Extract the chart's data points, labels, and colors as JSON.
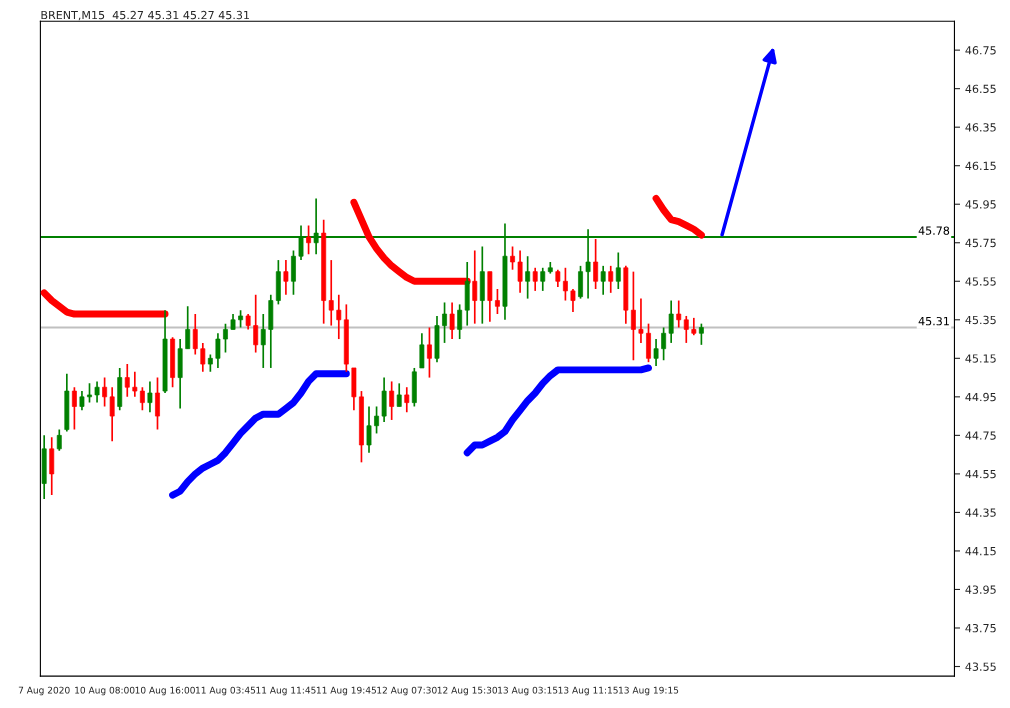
{
  "chart_data": {
    "type": "candlestick",
    "title": "BRENT,M15  45.27 45.31 45.27 45.31",
    "categories": [
      "7 Aug 2020",
      null,
      null,
      null,
      null,
      null,
      null,
      null,
      "10 Aug 08:00",
      null,
      null,
      null,
      null,
      null,
      null,
      null,
      "10 Aug 16:00",
      null,
      null,
      null,
      null,
      null,
      null,
      null,
      "11 Aug 03:45",
      null,
      null,
      null,
      null,
      null,
      null,
      null,
      "11 Aug 11:45",
      null,
      null,
      null,
      null,
      null,
      null,
      null,
      "11 Aug 19:45",
      null,
      null,
      null,
      null,
      null,
      null,
      null,
      "12 Aug 07:30",
      null,
      null,
      null,
      null,
      null,
      null,
      null,
      "12 Aug 15:30",
      null,
      null,
      null,
      null,
      null,
      null,
      null,
      "13 Aug 03:15",
      null,
      null,
      null,
      null,
      null,
      null,
      null,
      "13 Aug 11:15",
      null,
      null,
      null,
      null,
      null,
      null,
      null,
      "13 Aug 19:15",
      null,
      null,
      null,
      null,
      null,
      null,
      null,
      null,
      null,
      null,
      null,
      null,
      null,
      null,
      null,
      null,
      null,
      null,
      null,
      null,
      null,
      null,
      null,
      null,
      null,
      null,
      null,
      null,
      null,
      null,
      null,
      null,
      null,
      null,
      null,
      null,
      null,
      null,
      null,
      null
    ],
    "ohlc": [
      [
        44.5,
        44.75,
        44.42,
        44.68
      ],
      [
        44.68,
        44.74,
        44.44,
        44.55
      ],
      [
        44.68,
        44.78,
        44.67,
        44.75
      ],
      [
        44.78,
        45.07,
        44.77,
        44.98
      ],
      [
        44.98,
        45.0,
        44.78,
        44.9
      ],
      [
        44.9,
        44.98,
        44.88,
        44.95
      ],
      [
        44.95,
        45.02,
        44.92,
        44.96
      ],
      [
        44.96,
        45.03,
        44.92,
        45.0
      ],
      [
        45.0,
        45.05,
        44.9,
        44.95
      ],
      [
        44.95,
        45.0,
        44.72,
        44.85
      ],
      [
        44.9,
        45.1,
        44.88,
        45.05
      ],
      [
        45.05,
        45.12,
        44.95,
        45.0
      ],
      [
        45.0,
        45.08,
        44.95,
        44.98
      ],
      [
        44.98,
        45.0,
        44.88,
        44.92
      ],
      [
        44.92,
        45.03,
        44.87,
        44.97
      ],
      [
        44.97,
        45.05,
        44.78,
        44.85
      ],
      [
        44.98,
        45.4,
        44.97,
        45.25
      ],
      [
        45.25,
        45.26,
        45.0,
        45.05
      ],
      [
        45.05,
        45.25,
        44.89,
        45.2
      ],
      [
        45.2,
        45.42,
        45.2,
        45.3
      ],
      [
        45.3,
        45.38,
        45.17,
        45.2
      ],
      [
        45.2,
        45.23,
        45.08,
        45.12
      ],
      [
        45.12,
        45.17,
        45.08,
        45.15
      ],
      [
        45.15,
        45.28,
        45.1,
        45.25
      ],
      [
        45.25,
        45.33,
        45.18,
        45.3
      ],
      [
        45.3,
        45.38,
        45.3,
        45.35
      ],
      [
        45.35,
        45.4,
        45.31,
        45.37
      ],
      [
        45.37,
        45.38,
        45.3,
        45.32
      ],
      [
        45.32,
        45.48,
        45.18,
        45.22
      ],
      [
        45.22,
        45.38,
        45.1,
        45.3
      ],
      [
        45.3,
        45.48,
        45.1,
        45.45
      ],
      [
        45.45,
        45.66,
        45.43,
        45.6
      ],
      [
        45.6,
        45.66,
        45.48,
        45.55
      ],
      [
        45.55,
        45.71,
        45.48,
        45.68
      ],
      [
        45.68,
        45.84,
        45.66,
        45.78
      ],
      [
        45.78,
        45.84,
        45.69,
        45.75
      ],
      [
        45.75,
        45.98,
        45.69,
        45.8
      ],
      [
        45.8,
        45.87,
        45.33,
        45.45
      ],
      [
        45.45,
        45.66,
        45.32,
        45.4
      ],
      [
        45.4,
        45.48,
        45.25,
        45.35
      ],
      [
        45.35,
        45.43,
        45.08,
        45.12
      ],
      [
        45.1,
        45.1,
        44.88,
        44.95
      ],
      [
        44.95,
        44.98,
        44.61,
        44.7
      ],
      [
        44.7,
        44.9,
        44.66,
        44.8
      ],
      [
        44.8,
        44.9,
        44.76,
        44.85
      ],
      [
        44.85,
        45.05,
        44.82,
        44.98
      ],
      [
        44.98,
        45.03,
        44.83,
        44.9
      ],
      [
        44.9,
        45.02,
        44.9,
        44.96
      ],
      [
        44.96,
        45.0,
        44.87,
        44.92
      ],
      [
        44.92,
        45.1,
        44.9,
        45.08
      ],
      [
        45.1,
        45.28,
        45.1,
        45.22
      ],
      [
        45.22,
        45.31,
        45.05,
        45.15
      ],
      [
        45.15,
        45.37,
        45.13,
        45.32
      ],
      [
        45.32,
        45.44,
        45.23,
        45.38
      ],
      [
        45.38,
        45.44,
        45.25,
        45.3
      ],
      [
        45.3,
        45.43,
        45.25,
        45.4
      ],
      [
        45.4,
        45.65,
        45.32,
        45.55
      ],
      [
        45.55,
        45.71,
        45.33,
        45.45
      ],
      [
        45.45,
        45.73,
        45.33,
        45.6
      ],
      [
        45.6,
        45.6,
        45.34,
        45.45
      ],
      [
        45.45,
        45.51,
        45.38,
        45.42
      ],
      [
        45.42,
        45.85,
        45.35,
        45.68
      ],
      [
        45.68,
        45.73,
        45.61,
        45.65
      ],
      [
        45.65,
        45.71,
        45.49,
        45.55
      ],
      [
        45.55,
        45.68,
        45.46,
        45.6
      ],
      [
        45.6,
        45.62,
        45.5,
        45.55
      ],
      [
        45.55,
        45.62,
        45.5,
        45.6
      ],
      [
        45.6,
        45.65,
        45.59,
        45.62
      ],
      [
        45.6,
        45.61,
        45.52,
        45.55
      ],
      [
        45.55,
        45.62,
        45.45,
        45.5
      ],
      [
        45.5,
        45.51,
        45.39,
        45.45
      ],
      [
        45.47,
        45.63,
        45.46,
        45.6
      ],
      [
        45.6,
        45.82,
        45.46,
        45.65
      ],
      [
        45.65,
        45.77,
        45.51,
        45.55
      ],
      [
        45.55,
        45.63,
        45.48,
        45.6
      ],
      [
        45.6,
        45.63,
        45.49,
        45.55
      ],
      [
        45.55,
        45.7,
        45.51,
        45.62
      ],
      [
        45.62,
        45.63,
        45.33,
        45.4
      ],
      [
        45.4,
        45.6,
        45.14,
        45.3
      ],
      [
        45.3,
        45.46,
        45.23,
        45.28
      ],
      [
        45.28,
        45.33,
        45.13,
        45.15
      ],
      [
        45.15,
        45.25,
        45.11,
        45.2
      ],
      [
        45.2,
        45.31,
        45.14,
        45.28
      ],
      [
        45.28,
        45.45,
        45.23,
        45.38
      ],
      [
        45.38,
        45.45,
        45.31,
        45.35
      ],
      [
        45.35,
        45.37,
        45.23,
        45.3
      ],
      [
        45.3,
        45.36,
        45.27,
        45.28
      ],
      [
        45.28,
        45.33,
        45.22,
        45.31
      ],
      null,
      null,
      null,
      null,
      null,
      null,
      null,
      null,
      null,
      null,
      null,
      null,
      null,
      null,
      null,
      null,
      null,
      null,
      null,
      null,
      null,
      null,
      null,
      null,
      null,
      null,
      null,
      null,
      null,
      null,
      null,
      null,
      null
    ],
    "colors": [
      "#008000",
      "#ff0000",
      "#008000",
      "#008000",
      "#ff0000",
      "#008000",
      "#008000",
      "#008000",
      "#ff0000",
      "#ff0000",
      "#008000",
      "#ff0000",
      "#ff0000",
      "#ff0000",
      "#008000",
      "#ff0000",
      "#008000",
      "#ff0000",
      "#008000",
      "#008000",
      "#ff0000",
      "#ff0000",
      "#008000",
      "#008000",
      "#008000",
      "#008000",
      "#008000",
      "#ff0000",
      "#ff0000",
      "#008000",
      "#008000",
      "#008000",
      "#ff0000",
      "#008000",
      "#008000",
      "#ff0000",
      "#008000",
      "#ff0000",
      "#ff0000",
      "#ff0000",
      "#ff0000",
      "#ff0000",
      "#ff0000",
      "#008000",
      "#008000",
      "#008000",
      "#ff0000",
      "#008000",
      "#ff0000",
      "#008000",
      "#008000",
      "#ff0000",
      "#008000",
      "#008000",
      "#ff0000",
      "#008000",
      "#008000",
      "#ff0000",
      "#008000",
      "#ff0000",
      "#ff0000",
      "#008000",
      "#ff0000",
      "#ff0000",
      "#008000",
      "#ff0000",
      "#008000",
      "#008000",
      "#ff0000",
      "#ff0000",
      "#ff0000",
      "#008000",
      "#008000",
      "#ff0000",
      "#008000",
      "#ff0000",
      "#008000",
      "#ff0000",
      "#ff0000",
      "#ff0000",
      "#ff0000",
      "#008000",
      "#008000",
      "#008000",
      "#ff0000",
      "#ff0000",
      "#ff0000",
      "#008000",
      null,
      null,
      null,
      null,
      null,
      null,
      null,
      null,
      null,
      null,
      null,
      null,
      null,
      null,
      null,
      null,
      null,
      null,
      null,
      null,
      null,
      null,
      null,
      null,
      null,
      null,
      null,
      null,
      null,
      null,
      null,
      null,
      null
    ],
    "series": [
      {
        "type": "line",
        "color": "#ff0000",
        "values": [
          45.49,
          45.45,
          45.42,
          45.39,
          45.38,
          45.38,
          45.38,
          45.38,
          45.38,
          45.38,
          45.38,
          45.38,
          45.38,
          45.38,
          45.38,
          45.38,
          45.38,
          null,
          null,
          null,
          null,
          null,
          null,
          null,
          null,
          null,
          null,
          null,
          null,
          null,
          null,
          null,
          null,
          null,
          null,
          null,
          null,
          null,
          null,
          null,
          null,
          45.96,
          45.87,
          45.78,
          45.72,
          45.67,
          45.63,
          45.6,
          45.57,
          45.55,
          45.55,
          45.55,
          45.55,
          45.55,
          45.55,
          45.55,
          45.55,
          null,
          null,
          null,
          null,
          null,
          null,
          null,
          null,
          null,
          null,
          null,
          null,
          null,
          null,
          null,
          null,
          null,
          null,
          null,
          null,
          null,
          null,
          null,
          null,
          45.98,
          45.92,
          45.87,
          45.86,
          45.84,
          45.82,
          45.79,
          null,
          null,
          null,
          null,
          null,
          null,
          null,
          null,
          null,
          null,
          null,
          null,
          null,
          null,
          null,
          null,
          null,
          null,
          null,
          null,
          null,
          null,
          null,
          null,
          null,
          null,
          null,
          null,
          null,
          null,
          null,
          null,
          null
        ]
      },
      {
        "type": "line",
        "color": "#0000ff",
        "values": [
          null,
          null,
          null,
          null,
          null,
          null,
          null,
          null,
          null,
          null,
          null,
          null,
          null,
          null,
          null,
          null,
          null,
          44.44,
          44.46,
          44.51,
          44.55,
          44.58,
          44.6,
          44.62,
          44.66,
          44.71,
          44.76,
          44.8,
          44.84,
          44.86,
          44.86,
          44.86,
          44.89,
          44.92,
          44.97,
          45.03,
          45.07,
          45.07,
          45.07,
          45.07,
          45.07,
          null,
          null,
          null,
          null,
          null,
          null,
          null,
          null,
          null,
          null,
          null,
          null,
          null,
          null,
          null,
          44.66,
          44.7,
          44.7,
          44.72,
          44.74,
          44.77,
          44.83,
          44.88,
          44.93,
          44.97,
          45.02,
          45.06,
          45.09,
          45.09,
          45.09,
          45.09,
          45.09,
          45.09,
          45.09,
          45.09,
          45.09,
          45.09,
          45.09,
          45.09,
          45.1,
          null,
          null,
          null,
          null,
          null,
          null,
          null,
          null,
          null,
          null,
          null,
          null,
          null,
          null,
          null,
          null,
          null,
          null,
          null,
          null,
          null,
          null,
          null,
          null,
          null,
          null,
          null,
          null,
          null,
          null,
          null,
          null,
          null,
          null,
          null,
          null,
          null,
          null,
          null,
          null
        ]
      }
    ],
    "ref_lines": [
      {
        "axis": "y",
        "value": 45.78,
        "label": "45.78",
        "color": "#008000"
      },
      {
        "axis": "y",
        "value": 45.31,
        "label": "45.31",
        "color": "#c0c0c0"
      }
    ],
    "ylim": [
      43.5,
      46.9
    ],
    "yticks": [
      43.55,
      43.75,
      43.95,
      44.15,
      44.35,
      44.55,
      44.75,
      44.95,
      45.15,
      45.35,
      45.55,
      45.75,
      45.95,
      46.15,
      46.35,
      46.55,
      46.75
    ],
    "grid": false
  }
}
